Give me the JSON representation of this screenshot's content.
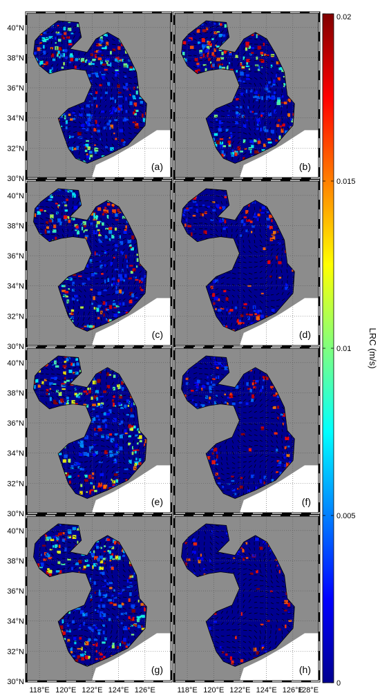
{
  "figure": {
    "panels": [
      {
        "label": "(a)",
        "intensity": 0.55,
        "hot": 0.25
      },
      {
        "label": "(b)",
        "intensity": 0.55,
        "hot": 0.35
      },
      {
        "label": "(c)",
        "intensity": 0.6,
        "hot": 0.35
      },
      {
        "label": "(d)",
        "intensity": 0.2,
        "hot": 0.3
      },
      {
        "label": "(e)",
        "intensity": 0.65,
        "hot": 0.35
      },
      {
        "label": "(f)",
        "intensity": 0.25,
        "hot": 0.25
      },
      {
        "label": "(g)",
        "intensity": 0.65,
        "hot": 0.35
      },
      {
        "label": "(h)",
        "intensity": 0.15,
        "hot": 0.2
      }
    ],
    "lat_ticks": [
      "30°N",
      "32°N",
      "34°N",
      "36°N",
      "38°N",
      "40°N"
    ],
    "lon_ticks_left": [
      "118°E",
      "120°E",
      "122°E",
      "124°E",
      "126°E"
    ],
    "lon_ticks_right": [
      "118°E",
      "120°E",
      "122°E",
      "124°E",
      "126°E",
      "128°E"
    ],
    "lon_range": [
      117,
      128
    ],
    "lat_range": [
      30,
      41
    ],
    "colorbar": {
      "label": "LRC (m/s)",
      "ticks": [
        "0",
        "0.005",
        "0.01",
        "0.015",
        "0.02"
      ],
      "tick_values": [
        0,
        0.005,
        0.01,
        0.015,
        0.02
      ],
      "range": [
        0,
        0.02
      ],
      "colormap": "jet"
    },
    "colors": {
      "land": "#8c8c8c",
      "outside": "#ffffff",
      "vector": "#000000"
    }
  }
}
